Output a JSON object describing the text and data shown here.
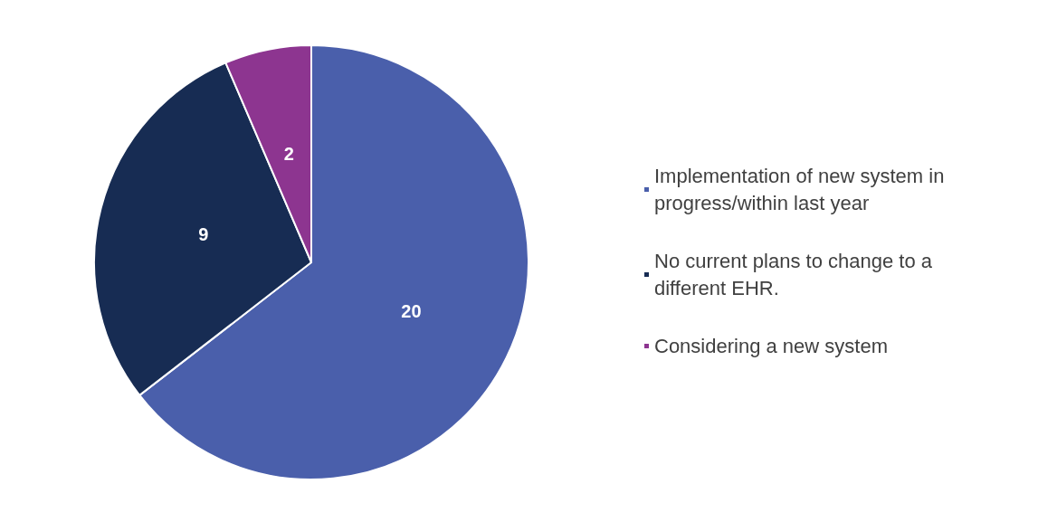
{
  "chart_data": {
    "type": "pie",
    "categories": [
      "Implementation of new system in progress/within last year",
      "No current plans to change to a different EHR.",
      "Considering a new system"
    ],
    "values": [
      20,
      9,
      2
    ],
    "colors": [
      "#4a5fab",
      "#172c53",
      "#8d3590"
    ],
    "data_labels": true,
    "legend": "right"
  }
}
